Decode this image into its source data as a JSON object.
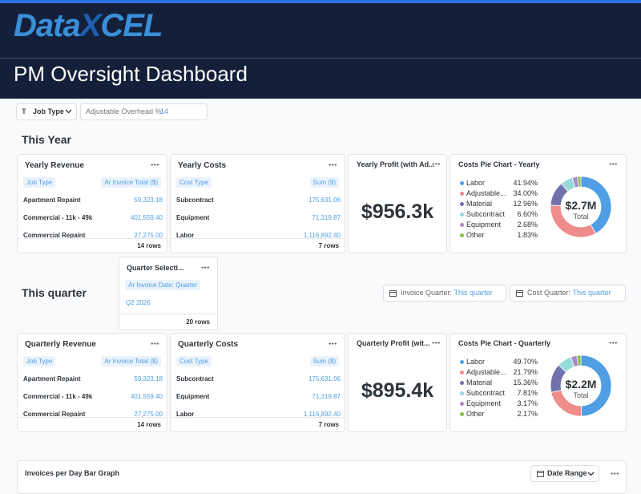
{
  "header": {
    "logo_data": "Data",
    "logo_x": "X",
    "logo_cel": "CEL",
    "title": "PM Oversight Dashboard"
  },
  "filters": {
    "job_type": "Job Type",
    "overhead_label": "Adjustable Overhead %:",
    "overhead_value": "14"
  },
  "sections": [
    {
      "heading": "This Year",
      "tables": [
        {
          "title": "Yearly Revenue",
          "columns": [
            "Job Type",
            "Ar Invoice Total ($)"
          ],
          "rows": [
            [
              "Apartment Repaint",
              "59,323.18"
            ],
            [
              "Commercial - 11k - 49k",
              "401,559.40"
            ],
            [
              "Commercial Repaint",
              "27,275.00"
            ]
          ],
          "footer": "14 rows"
        },
        {
          "title": "Yearly Costs",
          "columns": [
            "Cost Type",
            "Sum ($)"
          ],
          "rows": [
            [
              "Subcontract",
              "175,631.06"
            ],
            [
              "Equipment",
              "71,319.87"
            ],
            [
              "Labor",
              "1,116,892.40"
            ]
          ],
          "footer": "7 rows"
        }
      ],
      "profit": {
        "title": "Yearly Profit (with Ad...",
        "value": "$956.3k"
      },
      "pie": {
        "title": "Costs Pie Chart - Yearly",
        "total": "$2.7M",
        "total_label": "Total",
        "labels": [
          "Labor",
          "Adjustable...",
          "Material",
          "Subcontract",
          "Equipment",
          "Other"
        ],
        "values": [
          41.94,
          34.0,
          12.96,
          6.6,
          2.68,
          1.83
        ],
        "value_labels": [
          "41.94%",
          "34.00%",
          "12.96%",
          "6.60%",
          "2.68%",
          "1.83%"
        ],
        "colors": [
          "#509ee3",
          "#ef8c8c",
          "#7172ad",
          "#98d9d9",
          "#a989c5",
          "#88bf4d"
        ]
      }
    },
    {
      "heading": "This quarter",
      "tables": [
        {
          "title": "Quarterly Revenue",
          "columns": [
            "Job Type",
            "Ar Invoice Total ($)"
          ],
          "rows": [
            [
              "Apartment Repaint",
              "59,323.18"
            ],
            [
              "Commercial - 11k - 49k",
              "401,559.40"
            ],
            [
              "Commercial Repaint",
              "27,275.00"
            ]
          ],
          "footer": "14 rows"
        },
        {
          "title": "Quarterly Costs",
          "columns": [
            "Cost Type",
            "Sum ($)"
          ],
          "rows": [
            [
              "Subcontract",
              "175,631.06"
            ],
            [
              "Equipment",
              "71,319.87"
            ],
            [
              "Labor",
              "1,116,892.40"
            ]
          ],
          "footer": "7 rows"
        }
      ],
      "profit": {
        "title": "Quarterly Profit (wit...",
        "value": "$895.4k"
      },
      "pie": {
        "title": "Costs Pie Chart - Quarterly",
        "total": "$2.2M",
        "total_label": "Total",
        "labels": [
          "Labor",
          "Adjustable...",
          "Material",
          "Subcontract",
          "Equipment",
          "Other"
        ],
        "values": [
          49.7,
          21.79,
          15.36,
          7.81,
          3.17,
          2.17
        ],
        "value_labels": [
          "49.70%",
          "21.79%",
          "15.36%",
          "7.81%",
          "3.17%",
          "2.17%"
        ],
        "colors": [
          "#509ee3",
          "#ef8c8c",
          "#7172ad",
          "#98d9d9",
          "#a989c5",
          "#88bf4d"
        ]
      }
    }
  ],
  "quarter_selection": {
    "title": "Quarter Selecti...",
    "column": "Ar Invoice Date: Quarter",
    "rows": [
      "Q2 2026"
    ],
    "footer": "20 rows"
  },
  "quarter_filters": [
    {
      "label": "Invoice Quarter:",
      "value": "This quarter"
    },
    {
      "label": "Cost Quarter:",
      "value": "This quarter"
    }
  ],
  "bottom_card": {
    "title": "Invoices per Day Bar Graph",
    "date_range": "Date Range"
  }
}
